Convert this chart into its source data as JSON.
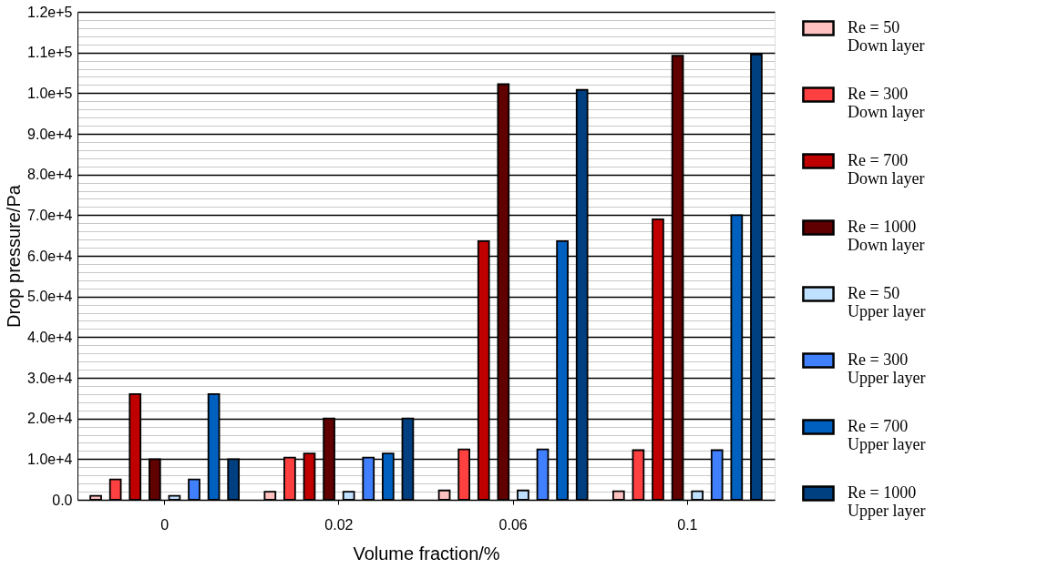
{
  "chart_data": {
    "type": "bar",
    "xlabel": "Volume fraction/%",
    "ylabel": "Drop pressure/Pa",
    "categories": [
      "0",
      "0.02",
      "0.06",
      "0.1"
    ],
    "series": [
      {
        "name": "Re = 50\nDown layer",
        "color": "#ffc0c0",
        "values": [
          1000,
          2000,
          2300,
          2100
        ]
      },
      {
        "name": "Re = 300\nDown layer",
        "color": "#ff4040",
        "values": [
          5000,
          10400,
          12400,
          12200
        ]
      },
      {
        "name": "Re = 700\nDown layer",
        "color": "#c00000",
        "values": [
          26000,
          11400,
          63600,
          69000
        ]
      },
      {
        "name": "Re = 1000\nDown layer",
        "color": "#600000",
        "values": [
          10000,
          20000,
          102200,
          109200
        ]
      },
      {
        "name": "Re = 50\nUpper layer",
        "color": "#c0e0ff",
        "values": [
          1000,
          2000,
          2300,
          2100
        ]
      },
      {
        "name": "Re = 300\nUpper layer",
        "color": "#4080ff",
        "values": [
          5000,
          10400,
          12400,
          12200
        ]
      },
      {
        "name": "Re = 700\nUpper layer",
        "color": "#0060c0",
        "values": [
          26000,
          11400,
          63600,
          70000
        ]
      },
      {
        "name": "Re = 1000\nUpper layer",
        "color": "#004080",
        "values": [
          10000,
          20000,
          100800,
          109500
        ]
      }
    ],
    "ylim": [
      0,
      120000
    ],
    "yticks": [
      {
        "value": 0,
        "label": "0.0"
      },
      {
        "value": 2000,
        "label": null
      },
      {
        "value": 4000,
        "label": null
      },
      {
        "value": 6000,
        "label": null
      },
      {
        "value": 8000,
        "label": null
      },
      {
        "value": 10000,
        "label": "1.0e+4"
      },
      {
        "value": 12000,
        "label": null
      },
      {
        "value": 14000,
        "label": null
      },
      {
        "value": 16000,
        "label": null
      },
      {
        "value": 18000,
        "label": null
      },
      {
        "value": 20000,
        "label": "2.0e+4"
      },
      {
        "value": 22000,
        "label": null
      },
      {
        "value": 24000,
        "label": null
      },
      {
        "value": 26000,
        "label": null
      },
      {
        "value": 28000,
        "label": null
      },
      {
        "value": 30000,
        "label": "3.0e+4"
      },
      {
        "value": 32000,
        "label": null
      },
      {
        "value": 34000,
        "label": null
      },
      {
        "value": 36000,
        "label": null
      },
      {
        "value": 38000,
        "label": null
      },
      {
        "value": 40000,
        "label": "4.0e+4"
      },
      {
        "value": 42000,
        "label": null
      },
      {
        "value": 44000,
        "label": null
      },
      {
        "value": 46000,
        "label": null
      },
      {
        "value": 48000,
        "label": null
      },
      {
        "value": 50000,
        "label": "5.0e+4"
      },
      {
        "value": 52000,
        "label": null
      },
      {
        "value": 54000,
        "label": null
      },
      {
        "value": 56000,
        "label": null
      },
      {
        "value": 58000,
        "label": null
      },
      {
        "value": 60000,
        "label": "6.0e+4"
      },
      {
        "value": 62000,
        "label": null
      },
      {
        "value": 64000,
        "label": null
      },
      {
        "value": 66000,
        "label": null
      },
      {
        "value": 68000,
        "label": null
      },
      {
        "value": 70000,
        "label": "7.0e+4"
      },
      {
        "value": 72000,
        "label": null
      },
      {
        "value": 74000,
        "label": null
      },
      {
        "value": 76000,
        "label": null
      },
      {
        "value": 78000,
        "label": null
      },
      {
        "value": 80000,
        "label": "8.0e+4"
      },
      {
        "value": 82000,
        "label": null
      },
      {
        "value": 84000,
        "label": null
      },
      {
        "value": 86000,
        "label": null
      },
      {
        "value": 88000,
        "label": null
      },
      {
        "value": 90000,
        "label": "9.0e+4"
      },
      {
        "value": 92000,
        "label": null
      },
      {
        "value": 94000,
        "label": null
      },
      {
        "value": 96000,
        "label": null
      },
      {
        "value": 98000,
        "label": null
      },
      {
        "value": 100000,
        "label": "1.0e+5"
      },
      {
        "value": 102000,
        "label": null
      },
      {
        "value": 104000,
        "label": null
      },
      {
        "value": 106000,
        "label": null
      },
      {
        "value": 108000,
        "label": null
      },
      {
        "value": 110000,
        "label": "1.1e+5"
      },
      {
        "value": 112000,
        "label": null
      },
      {
        "value": 114000,
        "label": null
      },
      {
        "value": 116000,
        "label": null
      },
      {
        "value": 118000,
        "label": null
      },
      {
        "value": 120000,
        "label": "1.2e+5"
      }
    ],
    "grid": "y",
    "legend": "right"
  }
}
